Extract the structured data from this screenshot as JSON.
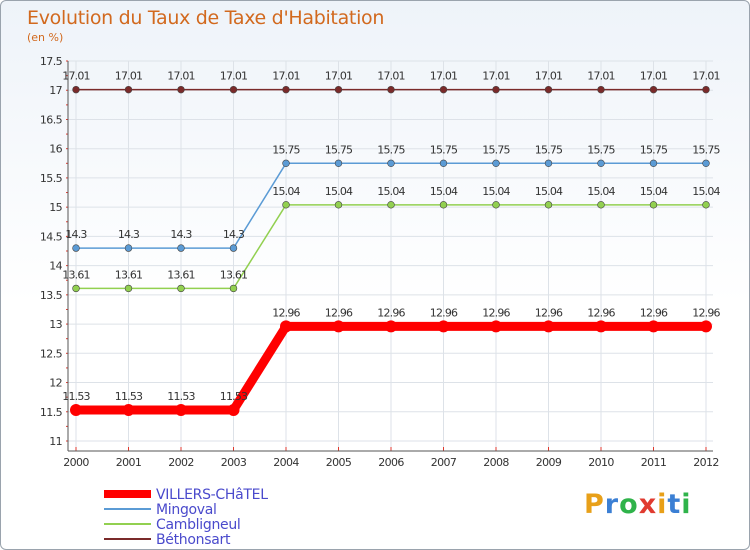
{
  "title": "Evolution du Taux de Taxe d'Habitation",
  "subtitle": "(en %)",
  "logo": {
    "letters": [
      "P",
      "r",
      "o",
      "x",
      "i",
      "t",
      "i"
    ],
    "colors": [
      "#e8a019",
      "#3b7fd4",
      "#2fb34a",
      "#e03a2f",
      "#e8a019",
      "#3b7fd4",
      "#2fb34a"
    ]
  },
  "chart_data": {
    "type": "line",
    "title": "Evolution du Taux de Taxe d'Habitation",
    "ylabel": "(en %)",
    "xlabel": "",
    "ylim": [
      11,
      17.5
    ],
    "yticks": [
      "11",
      "11.5",
      "12",
      "12.5",
      "13",
      "13.5",
      "14",
      "14.5",
      "15",
      "15.5",
      "16",
      "16.5",
      "17",
      "17.5"
    ],
    "x": [
      "2000",
      "2001",
      "2002",
      "2003",
      "2004",
      "2005",
      "2006",
      "2007",
      "2008",
      "2009",
      "2010",
      "2011",
      "2012"
    ],
    "series": [
      {
        "name": "Béthonsart",
        "color": "#7a2a2a",
        "values": [
          17.01,
          17.01,
          17.01,
          17.01,
          17.01,
          17.01,
          17.01,
          17.01,
          17.01,
          17.01,
          17.01,
          17.01,
          17.01
        ],
        "labels": [
          "17.01",
          "17.01",
          "17.01",
          "17.01",
          "17.01",
          "17.01",
          "17.01",
          "17.01",
          "17.01",
          "17.01",
          "17.01",
          "17.01",
          "17.01"
        ]
      },
      {
        "name": "Mingoval",
        "color": "#5b9bd5",
        "values": [
          14.3,
          14.3,
          14.3,
          14.3,
          15.75,
          15.75,
          15.75,
          15.75,
          15.75,
          15.75,
          15.75,
          15.75,
          15.75
        ],
        "labels": [
          "14.3",
          "14.3",
          "14.3",
          "14.3",
          "15.75",
          "15.75",
          "15.75",
          "15.75",
          "15.75",
          "15.75",
          "15.75",
          "15.75",
          "15.75"
        ]
      },
      {
        "name": "Cambligneul",
        "color": "#92d050",
        "values": [
          13.61,
          13.61,
          13.61,
          13.61,
          15.04,
          15.04,
          15.04,
          15.04,
          15.04,
          15.04,
          15.04,
          15.04,
          15.04
        ],
        "labels": [
          "13.61",
          "13.61",
          "13.61",
          "13.61",
          "15.04",
          "15.04",
          "15.04",
          "15.04",
          "15.04",
          "15.04",
          "15.04",
          "15.04",
          "15.04"
        ]
      },
      {
        "name": "VILLERS-CHâTEL",
        "color": "#ff0000",
        "values": [
          11.53,
          11.53,
          11.53,
          11.53,
          12.96,
          12.96,
          12.96,
          12.96,
          12.96,
          12.96,
          12.96,
          12.96,
          12.96
        ],
        "labels": [
          "11.53",
          "11.53",
          "11.53",
          "11.53",
          "12.96",
          "12.96",
          "12.96",
          "12.96",
          "12.96",
          "12.96",
          "12.96",
          "12.96",
          "12.96"
        ]
      }
    ],
    "legend": [
      "VILLERS-CHâTEL",
      "Mingoval",
      "Cambligneul",
      "Béthonsart"
    ]
  }
}
